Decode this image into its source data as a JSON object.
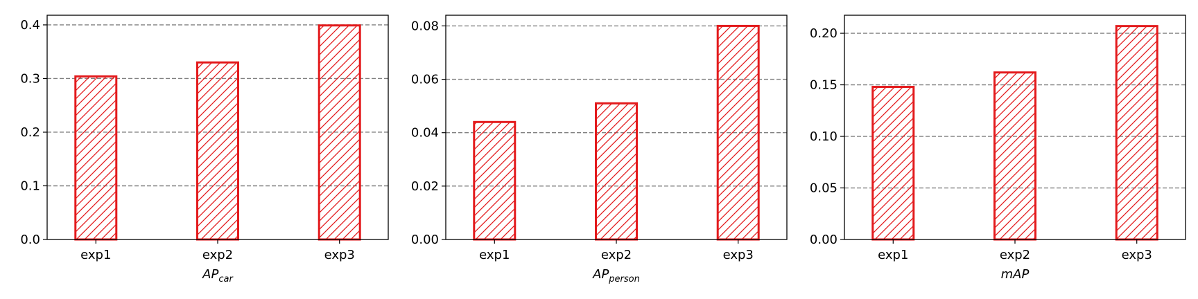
{
  "chart_data": [
    {
      "type": "bar",
      "categories": [
        "exp1",
        "exp2",
        "exp3"
      ],
      "values": [
        0.304,
        0.33,
        0.399
      ],
      "xlabel": {
        "main": "AP",
        "sub": "car"
      },
      "ylabel": "",
      "ylim": [
        0,
        0.418
      ],
      "yticks": [
        "0.0",
        "0.1",
        "0.2",
        "0.3",
        "0.4"
      ],
      "ytick_values": [
        0.0,
        0.1,
        0.2,
        0.3,
        0.4
      ],
      "grid": "horizontal-dashed"
    },
    {
      "type": "bar",
      "categories": [
        "exp1",
        "exp2",
        "exp3"
      ],
      "values": [
        0.044,
        0.051,
        0.08
      ],
      "xlabel": {
        "main": "AP",
        "sub": "person"
      },
      "ylabel": "",
      "ylim": [
        0,
        0.084
      ],
      "yticks": [
        "0.00",
        "0.02",
        "0.04",
        "0.06",
        "0.08"
      ],
      "ytick_values": [
        0.0,
        0.02,
        0.04,
        0.06,
        0.08
      ],
      "grid": "horizontal-dashed"
    },
    {
      "type": "bar",
      "categories": [
        "exp1",
        "exp2",
        "exp3"
      ],
      "values": [
        0.148,
        0.162,
        0.207
      ],
      "xlabel": {
        "main": "mAP",
        "sub": ""
      },
      "ylabel": "",
      "ylim": [
        0,
        0.2175
      ],
      "yticks": [
        "0.00",
        "0.05",
        "0.10",
        "0.15",
        "0.20"
      ],
      "ytick_values": [
        0.0,
        0.05,
        0.1,
        0.15,
        0.2
      ],
      "grid": "horizontal-dashed"
    }
  ],
  "colors": {
    "bar_edge": "#e31a1c",
    "grid": "#808080",
    "axis": "#000000"
  }
}
